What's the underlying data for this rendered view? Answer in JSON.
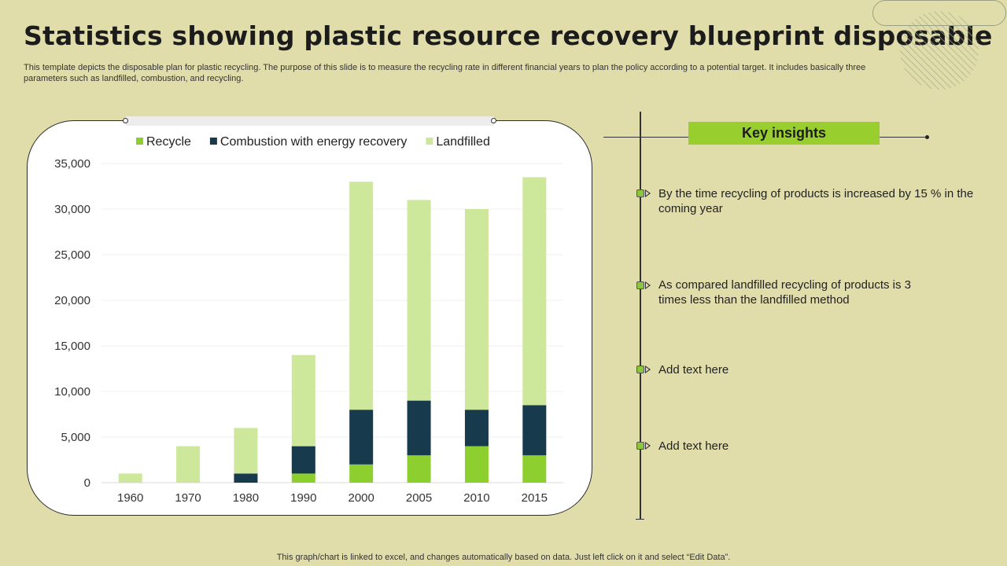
{
  "slide": {
    "title": "Statistics showing plastic resource recovery blueprint disposable",
    "subtitle": "This template depicts the disposable plan for plastic recycling. The purpose of this slide is to measure the recycling rate in different financial years to plan the policy according to a potential target. It includes basically three parameters such as landfilled, combustion, and recycling.",
    "footer": "This graph/chart is linked to excel,  and changes automatically based on data. Just left click on it and select “Edit Data”."
  },
  "insights": {
    "title": "Key insights",
    "items": [
      "By the time recycling of products is increased by 15 % in the coming year",
      "As compared landfilled  recycling of products is 3 times less than the landfilled method",
      "Add text here",
      "Add text here"
    ]
  },
  "colors": {
    "recycle": "#8dcf2e",
    "combustion": "#173a4d",
    "landfilled": "#cde79b",
    "accent": "#98cf2e",
    "background": "#e0ddab"
  },
  "chart_data": {
    "type": "bar",
    "stacked": true,
    "categories": [
      "1960",
      "1970",
      "1980",
      "1990",
      "2000",
      "2005",
      "2010",
      "2015"
    ],
    "series": [
      {
        "name": "Recycle",
        "values": [
          0,
          0,
          0,
          1000,
          2000,
          3000,
          4000,
          3000
        ]
      },
      {
        "name": "Combustion with energy recovery",
        "values": [
          0,
          0,
          1000,
          3000,
          6000,
          6000,
          4000,
          5500
        ]
      },
      {
        "name": "Landfilled",
        "values": [
          1000,
          4000,
          5000,
          10000,
          25000,
          22000,
          22000,
          25000
        ]
      }
    ],
    "yticks": [
      "0",
      "5,000",
      "10,000",
      "15,000",
      "20,000",
      "25,000",
      "30,000",
      "35,000"
    ],
    "ylim": [
      0,
      35000
    ],
    "legend": "top",
    "grid": true
  }
}
